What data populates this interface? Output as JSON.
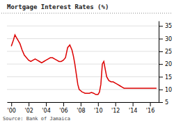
{
  "chart_data": {
    "type": "line",
    "title": "Mortgage Interest Rates (%)",
    "annotations": [
      "Source: Bank of Jamaica"
    ],
    "color": "#dd0000",
    "grid": true,
    "xlim": [
      1999.5,
      2017.0
    ],
    "xticks": [
      {
        "value": 2000,
        "label": "'00"
      },
      {
        "value": 2002,
        "label": "'02"
      },
      {
        "value": 2004,
        "label": "'04"
      },
      {
        "value": 2006,
        "label": "'06"
      },
      {
        "value": 2008,
        "label": "'08"
      },
      {
        "value": 2010,
        "label": "'10"
      },
      {
        "value": 2012,
        "label": "'12"
      },
      {
        "value": 2014,
        "label": "'14"
      },
      {
        "value": 2016,
        "label": "'16"
      }
    ],
    "ylim": [
      5,
      37
    ],
    "yticks": [
      5,
      10,
      15,
      20,
      25,
      30,
      35
    ],
    "x": [
      2000.0,
      2000.25,
      2000.42,
      2000.58,
      2000.75,
      2001.0,
      2001.25,
      2001.5,
      2001.75,
      2002.0,
      2002.25,
      2002.5,
      2002.75,
      2003.0,
      2003.25,
      2003.5,
      2003.75,
      2004.0,
      2004.25,
      2004.5,
      2004.75,
      2005.0,
      2005.25,
      2005.5,
      2005.75,
      2006.0,
      2006.25,
      2006.5,
      2006.75,
      2007.0,
      2007.17,
      2007.33,
      2007.5,
      2007.67,
      2007.83,
      2008.0,
      2008.17,
      2008.33,
      2008.5,
      2008.67,
      2008.83,
      2009.0,
      2009.25,
      2009.5,
      2009.75,
      2010.0,
      2010.17,
      2010.33,
      2010.5,
      2010.67,
      2010.83,
      2011.0,
      2011.25,
      2011.5,
      2011.75,
      2012.0,
      2012.25,
      2012.5,
      2012.75,
      2013.0,
      2013.25,
      2013.5,
      2013.75,
      2014.0,
      2014.25,
      2014.5,
      2014.75,
      2015.0,
      2015.25,
      2015.5,
      2015.75,
      2016.0,
      2016.25,
      2016.5,
      2016.75
    ],
    "values": [
      27.0,
      29.5,
      31.5,
      30.5,
      29.5,
      28.0,
      25.5,
      23.5,
      22.5,
      21.5,
      21.0,
      21.5,
      22.0,
      21.5,
      21.0,
      20.5,
      21.0,
      21.5,
      22.0,
      22.5,
      22.5,
      22.0,
      21.5,
      21.0,
      21.0,
      21.5,
      22.5,
      26.5,
      27.5,
      25.5,
      23.0,
      20.0,
      16.0,
      12.0,
      10.0,
      9.5,
      9.0,
      8.8,
      8.5,
      8.5,
      8.5,
      8.5,
      8.8,
      8.5,
      8.0,
      8.0,
      9.0,
      12.0,
      20.0,
      21.0,
      18.0,
      15.0,
      13.5,
      13.0,
      13.0,
      12.5,
      12.0,
      11.5,
      11.0,
      10.5,
      10.5,
      10.5,
      10.5,
      10.5,
      10.5,
      10.5,
      10.5,
      10.5,
      10.5,
      10.5,
      10.5,
      10.5,
      10.5,
      10.5,
      10.5
    ]
  }
}
